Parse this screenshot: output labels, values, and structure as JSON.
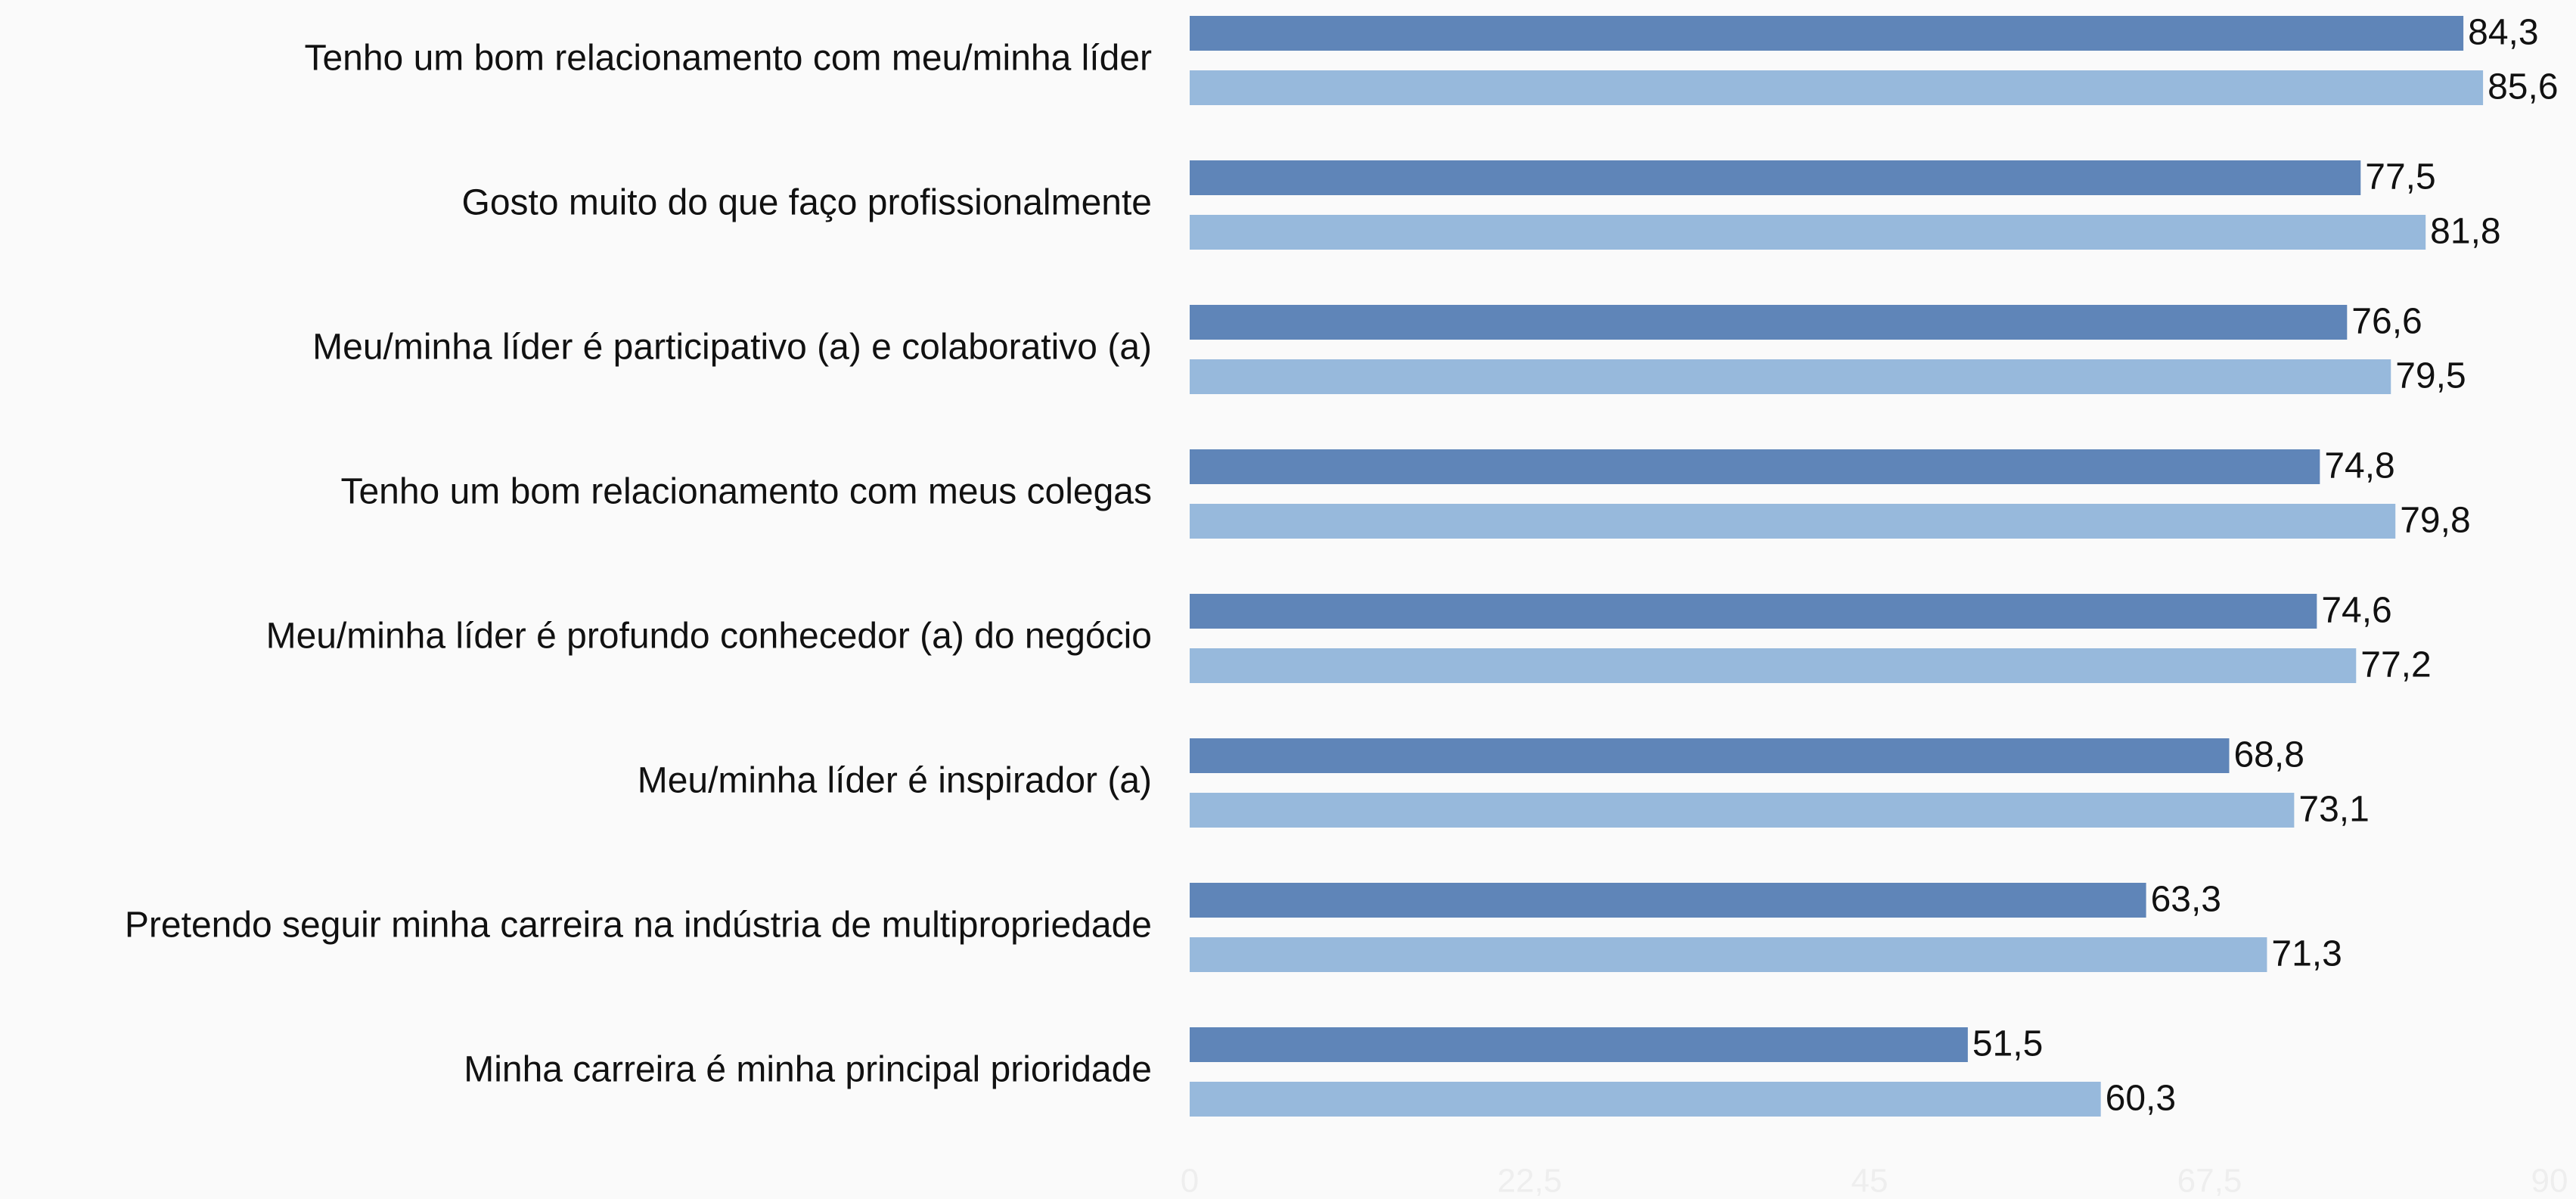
{
  "chart_data": {
    "type": "barh",
    "categories": [
      "Tenho um bom relacionamento com meu/minha líder",
      "Gosto muito do que faço profissionalmente",
      "Meu/minha líder é participativo (a) e colaborativo (a)",
      "Tenho um bom relacionamento com meus colegas",
      "Meu/minha líder é profundo conhecedor (a) do negócio",
      "Meu/minha líder é inspirador (a)",
      "Pretendo seguir minha carreira na indústria de multipropriedade",
      "Minha carreira é minha principal prioridade"
    ],
    "series": [
      {
        "color": "#5f85b8",
        "values": [
          84.3,
          77.5,
          76.6,
          74.8,
          74.6,
          68.8,
          63.3,
          51.5
        ],
        "value_labels": [
          "84,3",
          "77,5",
          "76,6",
          "74,8",
          "74,6",
          "68,8",
          "63,3",
          "51,5"
        ]
      },
      {
        "color": "#97b9dc",
        "values": [
          85.6,
          81.8,
          79.5,
          79.8,
          77.2,
          73.1,
          71.3,
          60.3
        ],
        "value_labels": [
          "85,6",
          "81,8",
          "79,5",
          "79,8",
          "77,2",
          "73,1",
          "71,3",
          "60,3"
        ]
      }
    ],
    "xlim": [
      0,
      90
    ],
    "xticks": [
      0,
      {
        "value": 22.5,
        "label": "22,5"
      },
      45,
      {
        "value": 67.5,
        "label": "67,5"
      },
      90
    ]
  }
}
